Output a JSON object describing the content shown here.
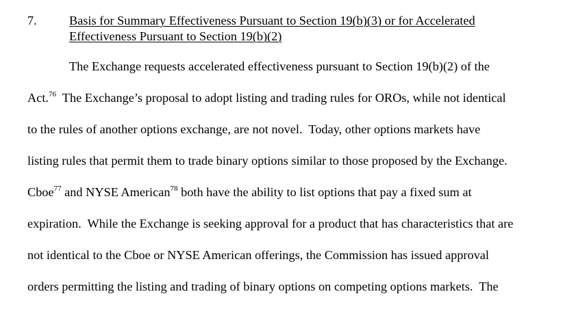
{
  "section": {
    "number": "7.",
    "heading_line1": "Basis for Summary Effectiveness Pursuant to Section 19(b)(3) or for Accelerated",
    "heading_line2": "Effectiveness Pursuant to Section 19(b)(2)"
  },
  "body": {
    "line0": "The Exchange requests accelerated effectiveness pursuant to Section 19(b)(2) of the",
    "line1_a": "Act.",
    "fn76": "76",
    "line1_b": "  The Exchange’s proposal to adopt listing and trading rules for OROs, while not identical",
    "line2": "to the rules of another options exchange, are not novel.  Today, other options markets have",
    "line3": "listing rules that permit them to trade binary options similar to those proposed by the Exchange.",
    "line4_a": "Cboe",
    "fn77": "77",
    "line4_b": " and NYSE American",
    "fn78": "78",
    "line4_c": " both have the ability to list options that pay a fixed sum at",
    "line5": "expiration.  While the Exchange is seeking approval for a product that has characteristics that are",
    "line6": "not identical to the Cboe or NYSE American offerings, the Commission has issued approval",
    "line7": "orders permitting the listing and trading of binary options on competing options markets.  The"
  }
}
